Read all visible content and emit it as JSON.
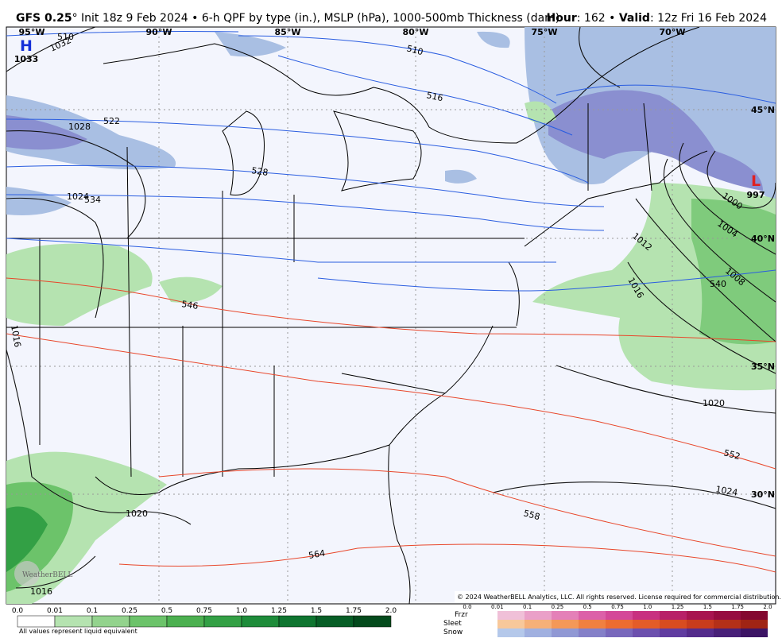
{
  "header": {
    "model": "GFS 0.25",
    "description": "° Init 18z 9 Feb 2024 • 6-h QPF by type (in.), MSLP (hPa), 1000-500mb Thickness (dam)",
    "hour_label": "Hour",
    "hour_value": ": 162 • ",
    "valid_label": "Valid",
    "valid_value": ": 12z Fri 16 Feb 2024"
  },
  "map": {
    "longitudes": [
      "95°W",
      "90°W",
      "85°W",
      "80°W",
      "75°W",
      "70°W"
    ],
    "latitudes": [
      "45°N",
      "40°N",
      "35°N",
      "30°N"
    ],
    "high": {
      "letter": "H",
      "pressure": "1033"
    },
    "low": {
      "letter": "L",
      "pressure": "997"
    },
    "isobar_labels": [
      "1032",
      "1028",
      "1024",
      "1016",
      "1020",
      "1016",
      "1000",
      "1004",
      "1008",
      "1012",
      "1016",
      "1020",
      "1024"
    ],
    "thickness_labels_cold": [
      "510",
      "510",
      "516",
      "522",
      "528",
      "534",
      "540"
    ],
    "thickness_labels_warm": [
      "546",
      "552",
      "558",
      "564"
    ],
    "logo": "WeatherBELL",
    "copyright": "© 2024 WeatherBELL Analytics, LLC. All rights reserved. License required for commercial distribution."
  },
  "legend": {
    "qpf_scale": [
      "0.0",
      "0.01",
      "0.1",
      "0.25",
      "0.5",
      "0.75",
      "1.0",
      "1.25",
      "1.5",
      "1.75",
      "2.0"
    ],
    "qpf_note": "All values represent liquid equivalent",
    "types": [
      "Frzr",
      "Sleet",
      "Snow"
    ],
    "type_scale": [
      "0.0",
      "0.01",
      "0.1",
      "0.25",
      "0.5",
      "0.75",
      "1.0",
      "1.25",
      "1.5",
      "1.75",
      "2.0"
    ]
  }
}
